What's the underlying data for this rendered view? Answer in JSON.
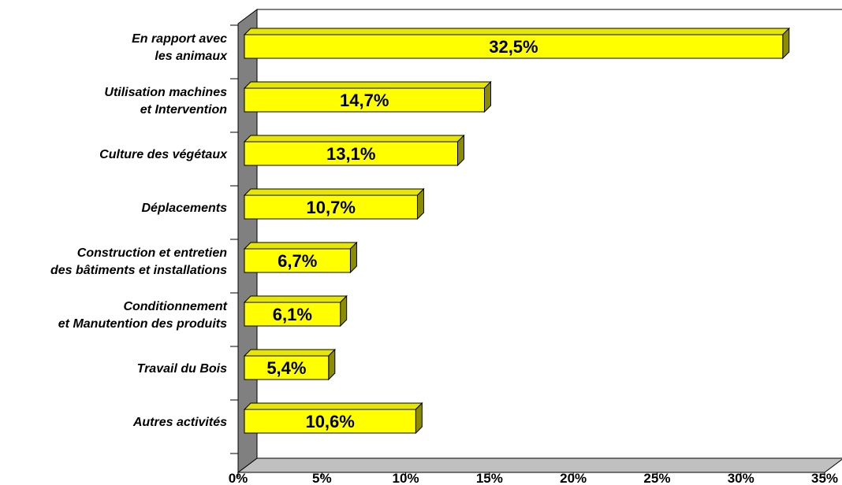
{
  "chart_data": {
    "type": "bar",
    "orientation": "horizontal",
    "categories": [
      [
        "En rapport avec",
        "les animaux"
      ],
      [
        "Utilisation machines",
        "et Intervention"
      ],
      [
        "Culture des végétaux"
      ],
      [
        "Déplacements"
      ],
      [
        "Construction et entretien",
        "des bâtiments et installations"
      ],
      [
        "Conditionnement",
        "et Manutention des produits"
      ],
      [
        "Travail du Bois"
      ],
      [
        "Autres activités"
      ]
    ],
    "values": [
      32.5,
      14.7,
      13.1,
      10.7,
      6.7,
      6.1,
      5.4,
      10.6
    ],
    "data_labels": [
      "32,5%",
      "14,7%",
      "13,1%",
      "10,7%",
      "6,7%",
      "6,1%",
      "5,4%",
      "10,6%"
    ],
    "x_ticks": [
      0,
      5,
      10,
      15,
      20,
      25,
      30,
      35
    ],
    "x_tick_labels": [
      "0%",
      "5%",
      "10%",
      "15%",
      "20%",
      "25%",
      "30%",
      "35%"
    ],
    "xlim": [
      0,
      35
    ],
    "title": "",
    "xlabel": "",
    "ylabel": "",
    "grid": false,
    "legend": "none",
    "colors": {
      "bar_front": "#ffff00",
      "bar_top": "#e6e600",
      "bar_side": "#8c8c00",
      "wall": "#808080",
      "floor": "#c0c0c0"
    }
  }
}
